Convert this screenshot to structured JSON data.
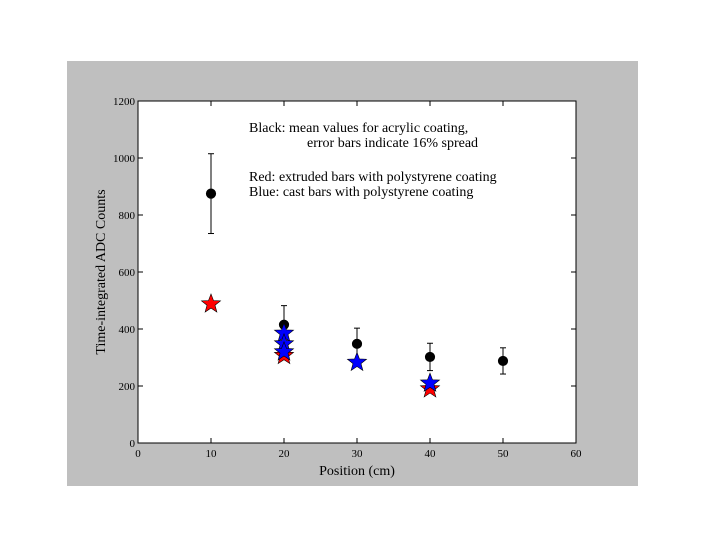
{
  "chart_data": {
    "type": "scatter",
    "xlabel": "Position (cm)",
    "ylabel": "Time-integrated ADC Counts",
    "xlim": [
      0,
      60
    ],
    "ylim": [
      0,
      1200
    ],
    "xticks": [
      0,
      10,
      20,
      30,
      40,
      50,
      60
    ],
    "yticks": [
      0,
      200,
      400,
      600,
      800,
      1000,
      1200
    ],
    "grid": false,
    "annotations": [
      "Black: mean values for acrylic coating,",
      "error bars indicate 16% spread",
      "Red: extruded bars with polystyrene coating",
      "Blue: cast bars with polystyrene coating"
    ],
    "series": [
      {
        "color": "#000000",
        "marker": "circle",
        "points": [
          {
            "x": 10,
            "y": 875,
            "yerr_low": 735,
            "yerr_high": 1015
          },
          {
            "x": 20,
            "y": 415,
            "yerr_low": 350,
            "yerr_high": 482
          },
          {
            "x": 30,
            "y": 348,
            "yerr_low": 293,
            "yerr_high": 403
          },
          {
            "x": 40,
            "y": 302,
            "yerr_low": 254,
            "yerr_high": 350
          },
          {
            "x": 50,
            "y": 288,
            "yerr_low": 242,
            "yerr_high": 334
          }
        ]
      },
      {
        "color": "#ff0000",
        "marker": "star",
        "points": [
          {
            "x": 10,
            "y": 488
          },
          {
            "x": 20,
            "y": 307
          },
          {
            "x": 40,
            "y": 190
          }
        ]
      },
      {
        "color": "#0000ff",
        "marker": "star",
        "points": [
          {
            "x": 20,
            "y": 385
          },
          {
            "x": 20,
            "y": 348
          },
          {
            "x": 20,
            "y": 320
          },
          {
            "x": 30,
            "y": 283
          },
          {
            "x": 40,
            "y": 210
          }
        ]
      }
    ]
  }
}
